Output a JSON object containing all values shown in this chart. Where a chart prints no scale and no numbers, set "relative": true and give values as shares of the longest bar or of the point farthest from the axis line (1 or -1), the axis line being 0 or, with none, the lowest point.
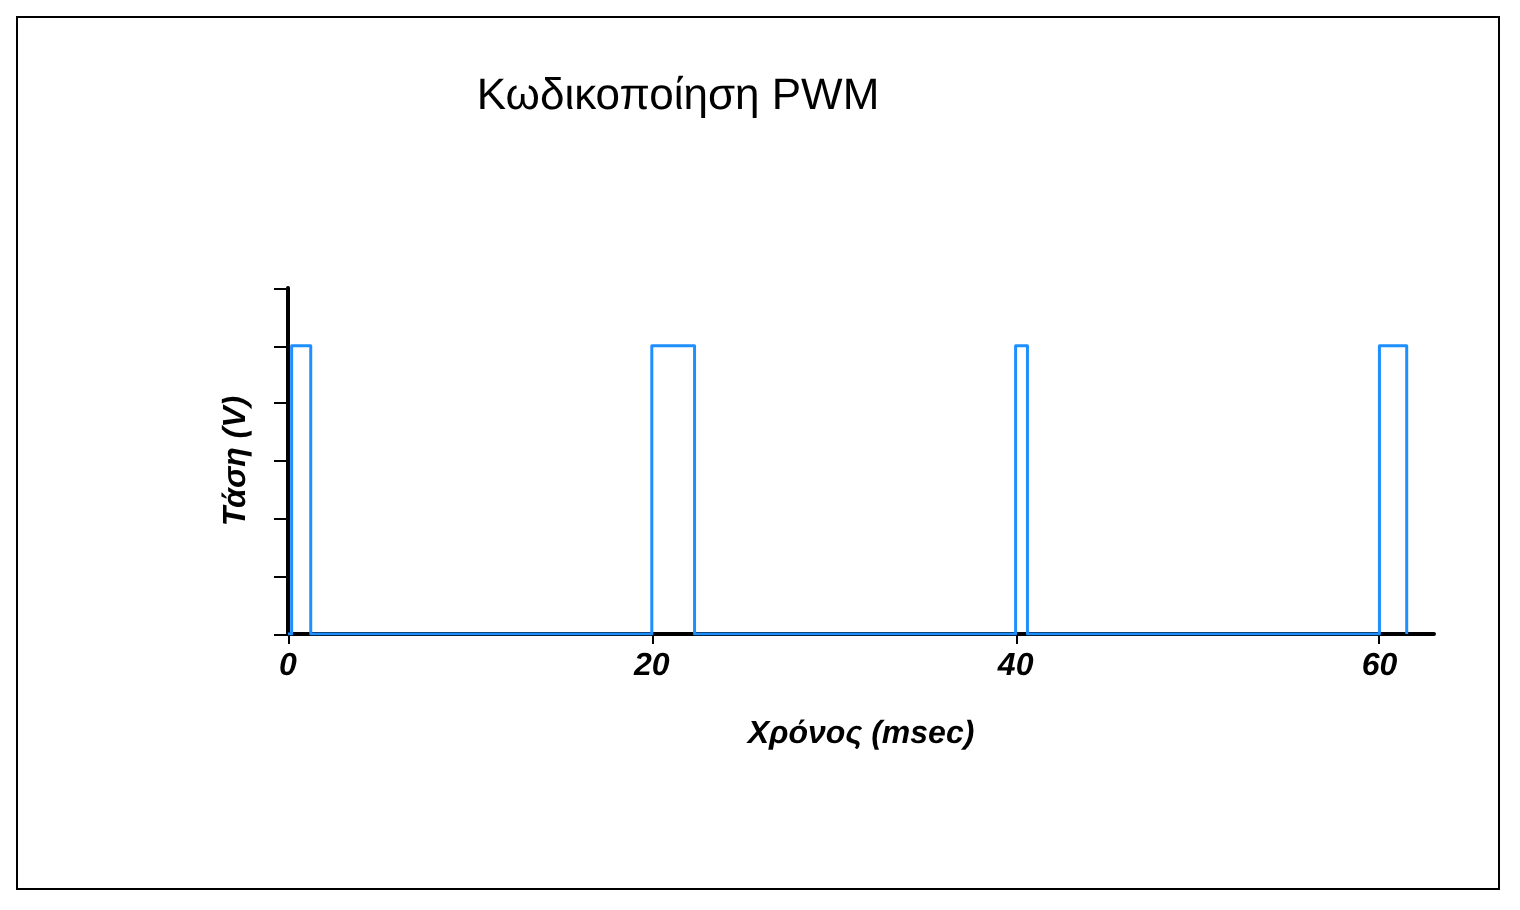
{
  "chart_data": {
    "type": "step",
    "title": "Κωδικοποίηση PWM",
    "xlabel": "Χρόνος (msec)",
    "ylabel": "Τάση (V)",
    "relative": true,
    "x": [
      0,
      0.2,
      1.25,
      20,
      22.35,
      40,
      40.65,
      60,
      61.5
    ],
    "series": [
      {
        "color": "#1e8fff",
        "values": [
          0,
          1,
          0,
          1,
          0,
          1,
          0,
          1,
          0
        ]
      }
    ],
    "xlim": [
      0,
      63
    ],
    "xticks": [
      0,
      20,
      40,
      60
    ],
    "grid": false,
    "marker": "none",
    "line_style": "solid"
  }
}
